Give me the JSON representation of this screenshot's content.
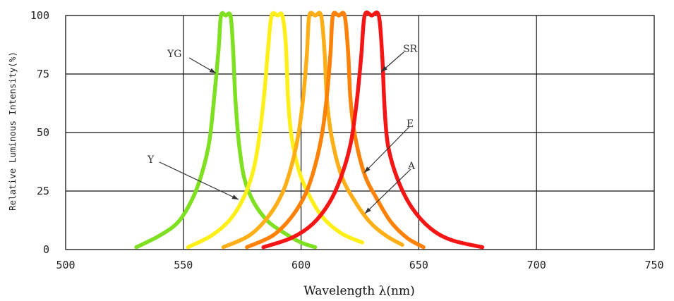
{
  "chart_data": {
    "type": "line",
    "xlabel": "Wavelength  λ(nm)",
    "ylabel": "Relative Luminous Intensity(%)",
    "xlim": [
      500,
      750
    ],
    "ylim": [
      0,
      100
    ],
    "xticks": [
      500,
      550,
      600,
      650,
      700,
      750
    ],
    "yticks": [
      0,
      25,
      50,
      75,
      100
    ],
    "grid": true,
    "series": [
      {
        "name": "YG",
        "color": "#7ee021",
        "x": [
          530,
          540,
          548,
          554,
          558,
          561,
          563,
          565,
          566,
          568,
          570,
          571,
          572,
          573,
          574,
          576,
          580,
          586,
          593,
          600,
          606
        ],
        "y": [
          1,
          6,
          12,
          22,
          33,
          46,
          64,
          86,
          100,
          100,
          100,
          88,
          66,
          52,
          42,
          30,
          20,
          12,
          7,
          3,
          1
        ]
      },
      {
        "name": "Y",
        "color": "#ffef19",
        "x": [
          552,
          562,
          570,
          576,
          580,
          582.5,
          584.5,
          586,
          587.5,
          590,
          592,
          593.5,
          594.5,
          596,
          599,
          603,
          609,
          617,
          626
        ],
        "y": [
          1,
          6,
          13,
          23,
          35,
          50,
          68,
          86,
          100,
          100,
          100,
          88,
          64,
          48,
          34,
          24,
          14,
          7,
          3
        ]
      },
      {
        "name": "A",
        "color": "#ffae15",
        "x": [
          567,
          578,
          586,
          592,
          596,
          599,
          601,
          602.5,
          603.5,
          606,
          608.5,
          610,
          611,
          613,
          617,
          622,
          629,
          636,
          643
        ],
        "y": [
          1,
          6,
          14,
          24,
          36,
          50,
          66,
          84,
          100,
          100,
          100,
          84,
          64,
          48,
          32,
          22,
          12,
          6,
          2
        ]
      },
      {
        "name": "E",
        "color": "#ff8207",
        "x": [
          577,
          588,
          596,
          602,
          606,
          609,
          611,
          612.5,
          613.5,
          616,
          618.5,
          620,
          621,
          623,
          627,
          632,
          638,
          645,
          652
        ],
        "y": [
          1,
          6,
          14,
          24,
          36,
          50,
          66,
          84,
          100,
          100,
          100,
          84,
          64,
          48,
          32,
          22,
          12,
          5,
          1
        ]
      },
      {
        "name": "SR",
        "color": "#f61515",
        "x": [
          584,
          596,
          605,
          612,
          617,
          621,
          623.5,
          625.5,
          627,
          630,
          633,
          634.5,
          635.5,
          637,
          641,
          647,
          655,
          664,
          677
        ],
        "y": [
          1,
          5,
          11,
          20,
          31,
          45,
          62,
          82,
          100,
          100,
          100,
          82,
          60,
          44,
          30,
          18,
          9,
          4,
          1
        ]
      }
    ],
    "annotations": [
      {
        "text": "YG",
        "series": "YG"
      },
      {
        "text": "Y",
        "series": "Y"
      },
      {
        "text": "SR",
        "series": "SR"
      },
      {
        "text": "E",
        "series": "E"
      },
      {
        "text": "A",
        "series": "A"
      }
    ]
  }
}
